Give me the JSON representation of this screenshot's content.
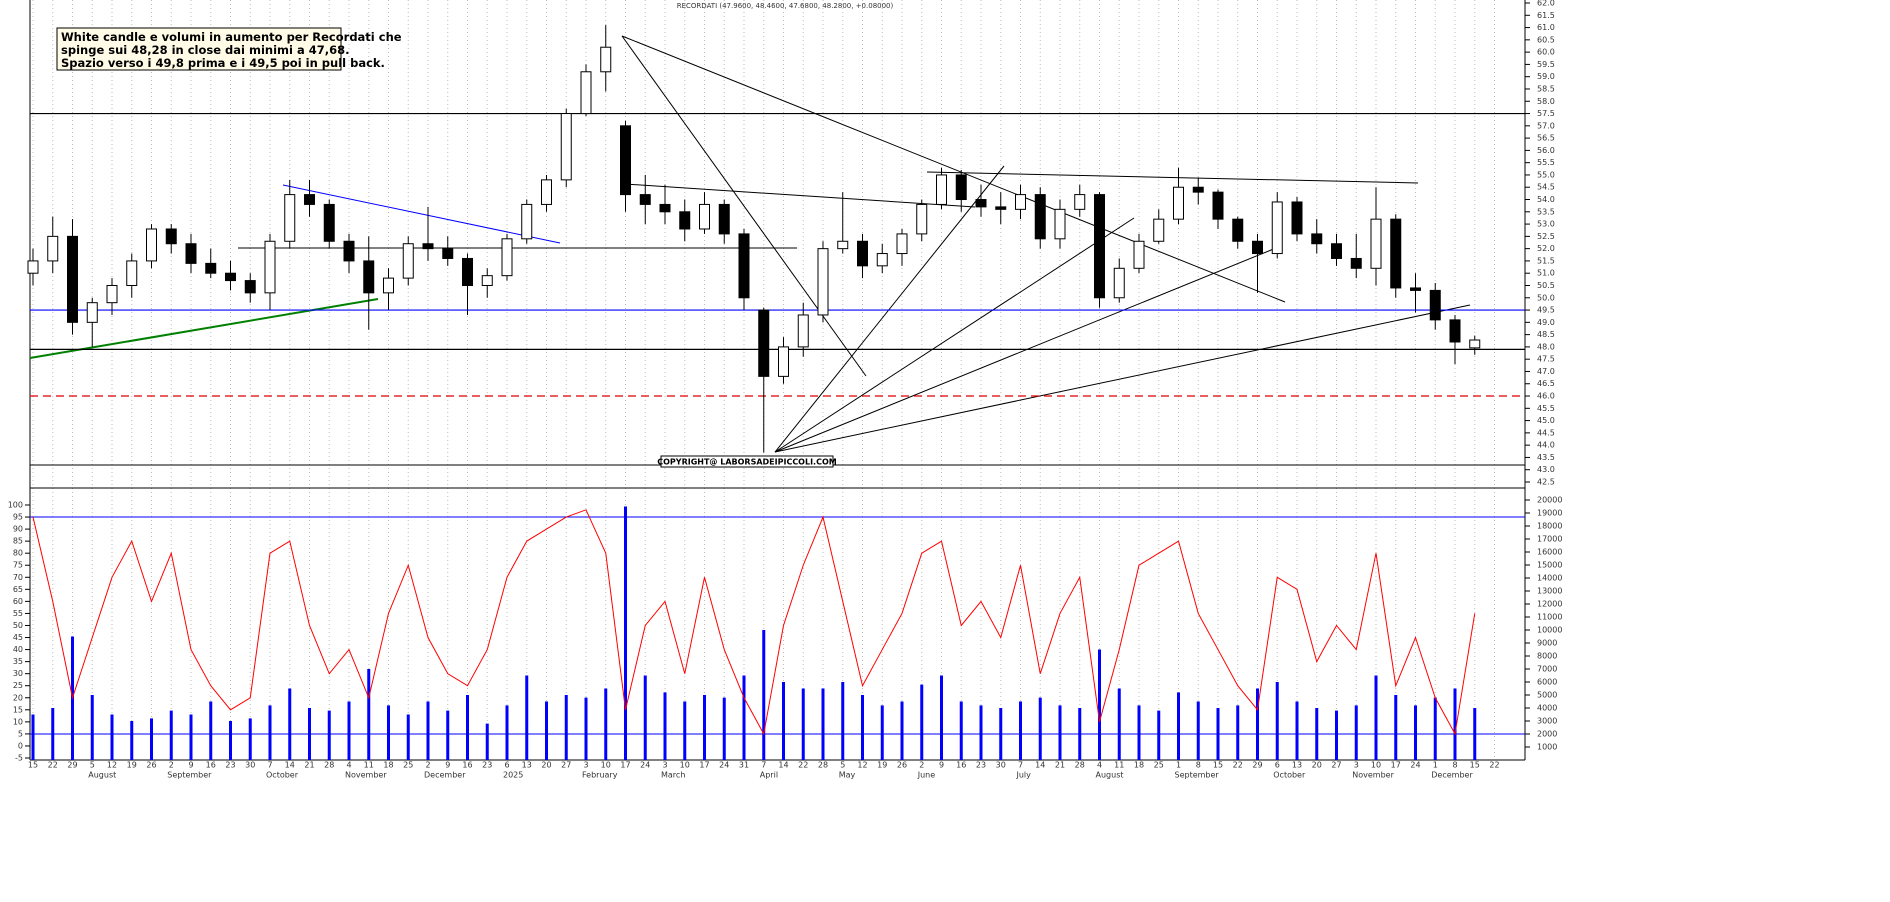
{
  "chart_data": {
    "type": "candlestick",
    "title": "RECORDATI (47.9600, 48.4600, 47.6800, 48.2800, +0.08000)",
    "annotation": [
      "White candle e volumi in aumento per Recordati che",
      "spinge sui 48,28 in close dai minimi a 47,68.",
      "Spazio verso i 49,8 prima e i 49,5 poi in pull back."
    ],
    "copyright": "COPYRIGHT@ LABORSADEIPICCOLI.COM",
    "categories": [
      "15",
      "22",
      "29",
      "5",
      "12",
      "19",
      "26",
      "2",
      "9",
      "16",
      "23",
      "30",
      "7",
      "14",
      "21",
      "28",
      "4",
      "11",
      "18",
      "25",
      "2",
      "9",
      "16",
      "23",
      "6",
      "13",
      "20",
      "27",
      "3",
      "10",
      "17",
      "24",
      "3",
      "10",
      "17",
      "24",
      "31",
      "7",
      "14",
      "22",
      "28",
      "5",
      "12",
      "19",
      "26",
      "2",
      "9",
      "16",
      "23",
      "30",
      "7",
      "14",
      "21",
      "28",
      "4",
      "11",
      "18",
      "25",
      "1",
      "8",
      "15",
      "22",
      "29",
      "6",
      "13",
      "20",
      "27",
      "3",
      "10",
      "17",
      "24",
      "1",
      "8",
      "15",
      "22"
    ],
    "months": [
      "August",
      "September",
      "October",
      "November",
      "December",
      "2025",
      "February",
      "March",
      "April",
      "May",
      "June",
      "July",
      "August",
      "September",
      "October",
      "November",
      "December"
    ],
    "open": [
      51,
      51.5,
      52.5,
      49,
      49.8,
      50.5,
      51.5,
      52.8,
      52.2,
      51.4,
      51,
      50.7,
      50.2,
      52.3,
      54.2,
      53.8,
      52.3,
      51.5,
      50.2,
      50.8,
      52.2,
      52,
      51.6,
      50.5,
      50.9,
      52.4,
      53.8,
      54.8,
      57.5,
      59.2,
      57,
      54.2,
      53.8,
      53.5,
      52.8,
      53.8,
      52.6,
      49.5,
      46.8,
      48,
      49.3,
      52,
      52.3,
      51.3,
      51.8,
      52.6,
      53.8,
      55,
      54,
      53.7,
      53.6,
      54.2,
      52.4,
      53.6,
      54.2,
      50,
      51.2,
      52.3,
      53.2,
      54.5,
      54.3,
      53.2,
      52.3,
      51.8,
      53.9,
      52.6,
      52.2,
      51.6,
      51.2,
      53.2,
      50.4,
      50.3,
      49.1,
      47.96,
      null
    ],
    "high": [
      52,
      53.3,
      53.2,
      50,
      50.8,
      51.8,
      53,
      53,
      52.6,
      52,
      51.5,
      51,
      52.6,
      54.8,
      54.8,
      54,
      52.6,
      52.5,
      51.2,
      52.5,
      53.7,
      52.5,
      51.8,
      51.2,
      52.6,
      54,
      55,
      57.7,
      59.5,
      61.1,
      57.2,
      55,
      54.6,
      54,
      54.3,
      54,
      52.8,
      49.6,
      48.4,
      49.8,
      52.3,
      54.3,
      52.6,
      52.2,
      52.8,
      54,
      55.3,
      55.2,
      54.6,
      54.3,
      54.6,
      54.5,
      54,
      54.6,
      54.3,
      51.6,
      52.6,
      53.6,
      55.3,
      54.9,
      54.4,
      53.3,
      52.6,
      54.3,
      54.1,
      53.2,
      52.6,
      52.6,
      54.5,
      53.4,
      51,
      50.6,
      49.3,
      48.46,
      null
    ],
    "low": [
      50.5,
      51,
      48.5,
      48,
      49.3,
      50,
      51.2,
      51.8,
      51,
      50.8,
      50.3,
      49.8,
      49.5,
      52,
      53.3,
      52,
      51,
      48.7,
      49.5,
      50.5,
      51.5,
      51.3,
      49.3,
      50,
      50.7,
      52.2,
      53.5,
      54.5,
      57.4,
      58.4,
      53.5,
      53,
      53,
      52.3,
      52.6,
      52.2,
      49.5,
      43.7,
      46.5,
      47.6,
      49,
      51.8,
      50.8,
      51,
      51.3,
      52.3,
      53.6,
      53.5,
      53.3,
      53,
      53.2,
      52,
      52,
      53.3,
      49.6,
      49.8,
      51,
      52.2,
      53,
      53.8,
      52.8,
      52,
      50.2,
      51.6,
      52.3,
      51.8,
      51.3,
      50.8,
      50.5,
      50,
      49.4,
      48.7,
      47.3,
      47.68,
      null
    ],
    "close": [
      51.5,
      52.5,
      49,
      49.8,
      50.5,
      51.5,
      52.8,
      52.2,
      51.4,
      51,
      50.7,
      50.2,
      52.3,
      54.2,
      53.8,
      52.3,
      51.5,
      50.2,
      50.8,
      52.2,
      52,
      51.6,
      50.5,
      50.9,
      52.4,
      53.8,
      54.8,
      57.5,
      59.2,
      60.2,
      54.2,
      53.8,
      53.5,
      52.8,
      53.8,
      52.6,
      50,
      46.8,
      48,
      49.3,
      52,
      52.3,
      51.3,
      51.8,
      52.6,
      53.8,
      55,
      54,
      53.7,
      53.6,
      54.2,
      52.4,
      53.6,
      54.2,
      50,
      51.2,
      52.3,
      53.2,
      54.5,
      54.3,
      53.2,
      52.3,
      51.8,
      53.9,
      52.6,
      52.2,
      51.6,
      51.2,
      53.2,
      50.4,
      50.3,
      49.1,
      48.2,
      48.28,
      null
    ],
    "up_color": "#ffffff",
    "down_color": "#000000",
    "ylim": [
      42.5,
      62
    ],
    "yticks": [
      42.5,
      {
        "value": 43,
        "label": "43.0"
      },
      43.5,
      {
        "value": 44,
        "label": "44.0"
      },
      44.5,
      {
        "value": 45,
        "label": "45.0"
      },
      45.5,
      {
        "value": 46,
        "label": "46.0"
      },
      46.5,
      {
        "value": 47,
        "label": "47.0"
      },
      47.5,
      {
        "value": 48,
        "label": "48.0"
      },
      48.5,
      {
        "value": 49,
        "label": "49.0"
      },
      49.5,
      {
        "value": 50,
        "label": "50.0"
      },
      50.5,
      {
        "value": 51,
        "label": "51.0"
      },
      51.5,
      {
        "value": 52,
        "label": "52.0"
      },
      52.5,
      {
        "value": 53,
        "label": "53.0"
      },
      53.5,
      {
        "value": 54,
        "label": "54.0"
      },
      54.5,
      {
        "value": 55,
        "label": "55.0"
      },
      55.5,
      {
        "value": 56,
        "label": "56.0"
      },
      56.5,
      {
        "value": 57,
        "label": "57.0"
      },
      57.5,
      {
        "value": 58,
        "label": "58.0"
      },
      58.5,
      {
        "value": 59,
        "label": "59.0"
      },
      59.5,
      {
        "value": 60,
        "label": "60.0"
      },
      60.5,
      {
        "value": 61,
        "label": "61.0"
      },
      61.5,
      {
        "value": 62,
        "label": "62.0"
      }
    ],
    "levels": [
      {
        "value": 57.5,
        "color": "#000000",
        "dashed": false
      },
      {
        "value": 49.5,
        "color": "#0000ff",
        "dashed": false
      },
      {
        "value": 47.9,
        "color": "#000000",
        "dashed": false
      },
      {
        "value": 46,
        "color": "#dd0000",
        "dashed": true
      }
    ],
    "oscillator": {
      "color": "#ff0000",
      "ylim": [
        -5,
        100
      ],
      "yticks": [
        -5,
        0,
        5,
        10,
        15,
        20,
        25,
        30,
        35,
        40,
        45,
        50,
        55,
        60,
        65,
        70,
        75,
        80,
        85,
        90,
        95,
        100
      ],
      "level": 95,
      "level_color": "#0000ff",
      "values": [
        95,
        60,
        20,
        45,
        70,
        85,
        60,
        80,
        40,
        25,
        15,
        20,
        80,
        85,
        50,
        30,
        40,
        20,
        55,
        75,
        45,
        30,
        25,
        40,
        70,
        85,
        90,
        95,
        98,
        80,
        15,
        50,
        60,
        30,
        70,
        40,
        20,
        5,
        50,
        75,
        95,
        60,
        25,
        40,
        55,
        80,
        85,
        50,
        60,
        45,
        75,
        30,
        55,
        70,
        10,
        40,
        75,
        80,
        85,
        55,
        40,
        25,
        15,
        70,
        65,
        35,
        50,
        40,
        80,
        25,
        45,
        20,
        5,
        55,
        null
      ]
    },
    "volume": {
      "color": "#0000ff",
      "y2lim": [
        0,
        20000
      ],
      "y2ticks": [
        1000,
        2000,
        3000,
        4000,
        5000,
        6000,
        7000,
        8000,
        9000,
        10000,
        11000,
        12000,
        13000,
        14000,
        15000,
        16000,
        17000,
        18000,
        19000,
        20000
      ],
      "level": 2000,
      "level_color": "#0000ff",
      "values": [
        3500,
        4000,
        9500,
        5000,
        3500,
        3000,
        3200,
        3800,
        3500,
        4500,
        3000,
        3200,
        4200,
        5500,
        4000,
        3800,
        4500,
        7000,
        4200,
        3500,
        4500,
        3800,
        5000,
        2800,
        4200,
        6500,
        4500,
        5000,
        4800,
        5500,
        19500,
        6500,
        5200,
        4500,
        5000,
        4800,
        6500,
        10000,
        6000,
        5500,
        5500,
        6000,
        5000,
        4200,
        4500,
        5800,
        6500,
        4500,
        4200,
        4000,
        4500,
        4800,
        4200,
        4000,
        8500,
        5500,
        4200,
        3800,
        5200,
        4500,
        4000,
        4200,
        5500,
        6000,
        4500,
        4000,
        3800,
        4200,
        6500,
        5000,
        4200,
        4800,
        5500,
        4000,
        null
      ]
    }
  }
}
